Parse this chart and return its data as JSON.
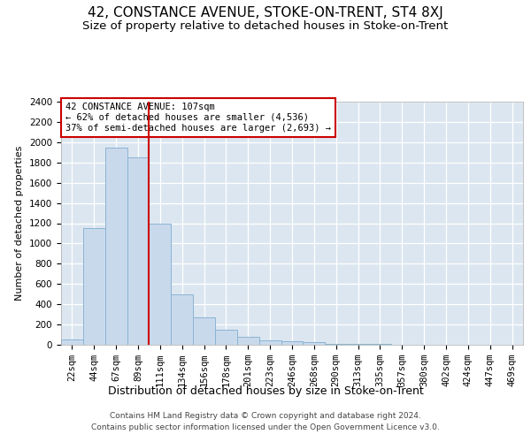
{
  "title": "42, CONSTANCE AVENUE, STOKE-ON-TRENT, ST4 8XJ",
  "subtitle": "Size of property relative to detached houses in Stoke-on-Trent",
  "xlabel": "Distribution of detached houses by size in Stoke-on-Trent",
  "ylabel": "Number of detached properties",
  "categories": [
    "22sqm",
    "44sqm",
    "67sqm",
    "89sqm",
    "111sqm",
    "134sqm",
    "156sqm",
    "178sqm",
    "201sqm",
    "223sqm",
    "246sqm",
    "268sqm",
    "290sqm",
    "313sqm",
    "335sqm",
    "357sqm",
    "380sqm",
    "402sqm",
    "424sqm",
    "447sqm",
    "469sqm"
  ],
  "values": [
    50,
    1150,
    1950,
    1850,
    1200,
    500,
    270,
    150,
    75,
    40,
    35,
    30,
    10,
    10,
    5,
    2,
    2,
    2,
    2,
    2,
    2
  ],
  "bar_color": "#c9d9ec",
  "bar_edge_color": "#8ab4d4",
  "vline_color": "#cc0000",
  "vline_x_index": 3.5,
  "annotation_line1": "42 CONSTANCE AVENUE: 107sqm",
  "annotation_line2": "← 62% of detached houses are smaller (4,536)",
  "annotation_line3": "37% of semi-detached houses are larger (2,693) →",
  "annotation_box_color": "#cc0000",
  "annotation_box_fill": "#ffffff",
  "footer_line1": "Contains HM Land Registry data © Crown copyright and database right 2024.",
  "footer_line2": "Contains public sector information licensed under the Open Government Licence v3.0.",
  "ylim": [
    0,
    2400
  ],
  "yticks": [
    0,
    200,
    400,
    600,
    800,
    1000,
    1200,
    1400,
    1600,
    1800,
    2000,
    2200,
    2400
  ],
  "background_color": "#dce6f0",
  "title_fontsize": 11,
  "subtitle_fontsize": 9.5,
  "xlabel_fontsize": 9,
  "ylabel_fontsize": 8,
  "tick_fontsize": 7.5
}
